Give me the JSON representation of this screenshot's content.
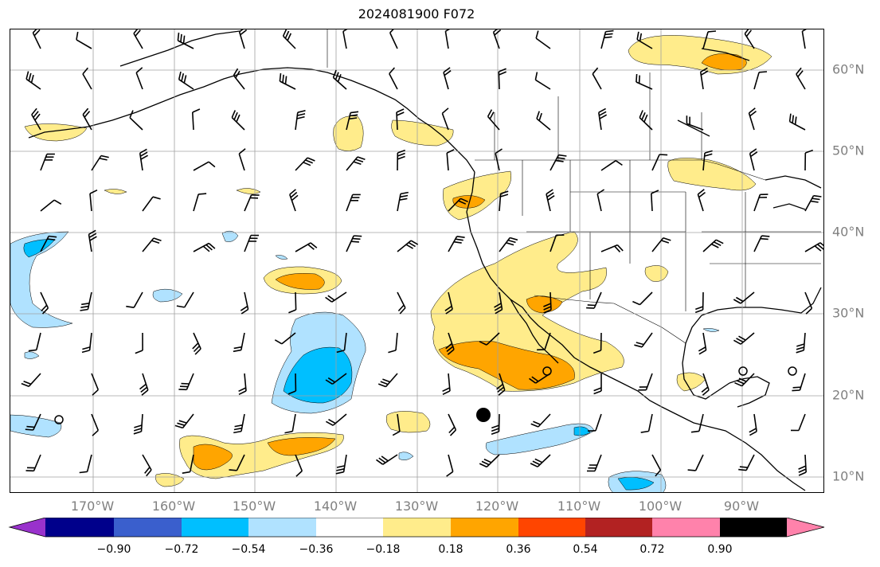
{
  "title": "2024081900 F072",
  "lat_labels": [
    "60°N",
    "50°N",
    "40°N",
    "30°N",
    "20°N",
    "10°N"
  ],
  "lon_labels": [
    "170°W",
    "160°W",
    "150°W",
    "140°W",
    "130°W",
    "120°W",
    "110°W",
    "100°W",
    "90°W"
  ],
  "colorbar": {
    "colors": [
      "#9932cc",
      "#00008b",
      "#3a5fcd",
      "#00bfff",
      "#b0e2ff",
      "#ffffff",
      "#ffec8b",
      "#ffa500",
      "#ff4500",
      "#b22222",
      "#ff82ab"
    ],
    "tick_labels": [
      "−0.90",
      "−0.72",
      "−0.54",
      "−0.36",
      "−0.18",
      "0.18",
      "0.36",
      "0.54",
      "0.72",
      "0.90"
    ]
  },
  "colors": {
    "positive_light": "#ffec8b",
    "positive_mid": "#ffa500",
    "negative_light": "#b0e2ff",
    "negative_mid": "#00bfff",
    "negative_dark": "#1e90ff",
    "gridline": "#a0a0a0",
    "label": "#808080"
  }
}
